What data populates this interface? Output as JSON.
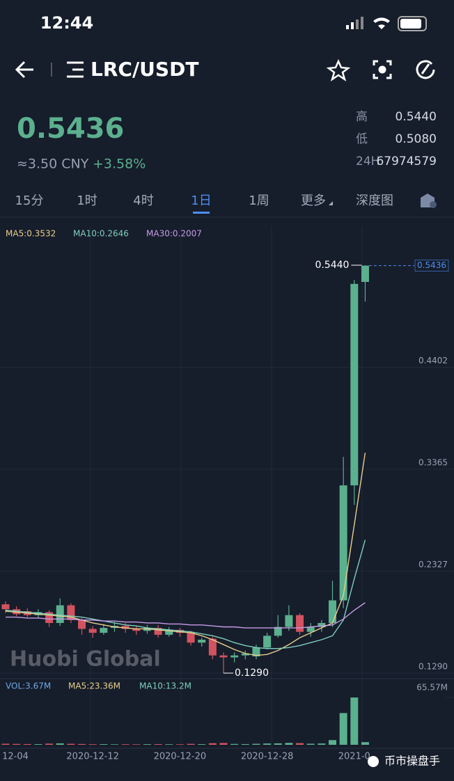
{
  "status": {
    "time": "12:44"
  },
  "header": {
    "pair": "LRC/USDT"
  },
  "ticker": {
    "price": "0.5436",
    "cny": "≈3.50 CNY",
    "change": "+3.58%",
    "stats": [
      {
        "label": "高",
        "value": "0.5440"
      },
      {
        "label": "低",
        "value": "0.5080"
      },
      {
        "label": "24H",
        "value": "67974579"
      }
    ]
  },
  "tabs": {
    "items": [
      "15分",
      "1时",
      "4时",
      "1日",
      "1周",
      "更多",
      "深度图"
    ],
    "active": 3
  },
  "watermarks": [
    "Huobi Global",
    "币市操盘手"
  ],
  "chart_data": {
    "type": "candlestick",
    "categories": [
      "12-04",
      null,
      null,
      null,
      null,
      null,
      null,
      null,
      "2020-12-12",
      null,
      null,
      null,
      null,
      null,
      null,
      null,
      "2020-12-20",
      null,
      null,
      null,
      null,
      null,
      null,
      null,
      "2020-12-28",
      null,
      null,
      null,
      null,
      null,
      null,
      null,
      "2021-0",
      null
    ],
    "open": [
      0.199,
      0.194,
      0.192,
      0.188,
      0.191,
      0.18,
      0.198,
      0.183,
      0.174,
      0.17,
      0.175,
      0.177,
      0.174,
      0.172,
      0.175,
      0.168,
      0.173,
      0.17,
      0.16,
      0.164,
      0.147,
      0.145,
      0.147,
      0.146,
      0.155,
      0.167,
      0.176,
      0.188,
      0.171,
      0.176,
      0.18,
      0.203,
      0.32,
      0.527
    ],
    "high": [
      0.202,
      0.197,
      0.195,
      0.194,
      0.193,
      0.205,
      0.2,
      0.185,
      0.177,
      0.179,
      0.181,
      0.18,
      0.177,
      0.178,
      0.178,
      0.176,
      0.175,
      0.172,
      0.165,
      0.166,
      0.15,
      0.15,
      0.152,
      0.158,
      0.17,
      0.188,
      0.198,
      0.19,
      0.18,
      0.183,
      0.223,
      0.349,
      0.529,
      0.544
    ],
    "low": [
      0.19,
      0.187,
      0.186,
      0.185,
      0.176,
      0.177,
      0.18,
      0.168,
      0.165,
      0.168,
      0.171,
      0.17,
      0.168,
      0.169,
      0.165,
      0.166,
      0.166,
      0.157,
      0.156,
      0.143,
      0.129,
      0.14,
      0.143,
      0.143,
      0.153,
      0.165,
      0.172,
      0.168,
      0.166,
      0.171,
      0.176,
      0.195,
      0.3,
      0.507
    ],
    "close": [
      0.194,
      0.189,
      0.188,
      0.191,
      0.18,
      0.198,
      0.183,
      0.174,
      0.17,
      0.175,
      0.177,
      0.174,
      0.172,
      0.175,
      0.168,
      0.173,
      0.17,
      0.16,
      0.163,
      0.147,
      0.145,
      0.147,
      0.149,
      0.155,
      0.167,
      0.176,
      0.188,
      0.171,
      0.176,
      0.18,
      0.203,
      0.32,
      0.525,
      0.5436
    ],
    "up_color": "#5bb08e",
    "down_color": "#d2535f",
    "overlays": [
      {
        "label": "MA5:0.3532",
        "color": "#e8d08c",
        "values": [
          0.192,
          0.191,
          0.19,
          0.189,
          0.188,
          0.187,
          0.186,
          0.183,
          0.18,
          0.178,
          0.176,
          0.175,
          0.174,
          0.174,
          0.173,
          0.172,
          0.171,
          0.17,
          0.167,
          0.163,
          0.158,
          0.153,
          0.149,
          0.147,
          0.148,
          0.152,
          0.158,
          0.165,
          0.17,
          0.175,
          0.18,
          0.208,
          0.28,
          0.3532
        ]
      },
      {
        "label": "MA10:0.2646",
        "color": "#7fd0bd",
        "values": [
          0.193,
          0.192,
          0.191,
          0.19,
          0.189,
          0.188,
          0.187,
          0.186,
          0.184,
          0.182,
          0.18,
          0.178,
          0.177,
          0.175,
          0.174,
          0.173,
          0.172,
          0.171,
          0.169,
          0.167,
          0.164,
          0.16,
          0.157,
          0.155,
          0.154,
          0.154,
          0.155,
          0.157,
          0.16,
          0.163,
          0.167,
          0.183,
          0.225,
          0.2646
        ]
      },
      {
        "label": "MA30:0.2007",
        "color": "#c79be8",
        "values": [
          0.186,
          0.186,
          0.185,
          0.185,
          0.184,
          0.184,
          0.184,
          0.183,
          0.183,
          0.182,
          0.182,
          0.181,
          0.181,
          0.18,
          0.18,
          0.179,
          0.179,
          0.178,
          0.178,
          0.177,
          0.176,
          0.176,
          0.175,
          0.175,
          0.175,
          0.175,
          0.175,
          0.175,
          0.176,
          0.177,
          0.178,
          0.184,
          0.193,
          0.2007
        ]
      }
    ],
    "ylim": [
      0.129,
      0.544
    ],
    "yticks": [
      {
        "value": 0.4402,
        "label": "0.4402"
      },
      {
        "value": 0.3365,
        "label": "0.3365"
      },
      {
        "value": 0.2327,
        "label": "0.2327"
      },
      {
        "value": 0.129,
        "label": "0.1290"
      }
    ],
    "last_price": {
      "value": 0.5436,
      "label": "0.5436"
    },
    "max_label": {
      "value": 0.544,
      "label": "0.5440"
    },
    "min_label": {
      "value": 0.129,
      "label": "0.1290"
    },
    "grid": true,
    "volume": {
      "legend": [
        {
          "label": "VOL:3.67M",
          "color": "#6fa9e6"
        },
        {
          "label": "MA5:23.36M",
          "color": "#e8d08c"
        },
        {
          "label": "MA10:13.2M",
          "color": "#7fd0bd"
        }
      ],
      "values": [
        1.5,
        1.2,
        1.0,
        0.9,
        1.6,
        2.0,
        1.4,
        1.1,
        0.8,
        0.9,
        0.7,
        0.8,
        0.7,
        0.9,
        1.0,
        0.8,
        0.7,
        1.3,
        0.9,
        2.2,
        2.5,
        1.2,
        1.0,
        1.4,
        1.8,
        2.0,
        2.6,
        2.3,
        1.5,
        1.8,
        6.5,
        44.0,
        65.57,
        3.67
      ],
      "ylim": [
        0,
        65.57
      ],
      "yticks": [
        {
          "value": 65.57,
          "label": "65.57M"
        }
      ]
    }
  }
}
